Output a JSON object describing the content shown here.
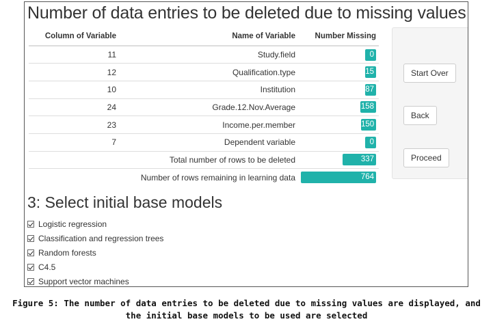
{
  "missing_section": {
    "title": "Number of data entries to be deleted due to missing values",
    "headers": [
      "Column of Variable",
      "Name of Variable",
      "Number Missing"
    ],
    "rows": [
      {
        "column": "11",
        "name": "Study.field",
        "missing": 0
      },
      {
        "column": "12",
        "name": "Qualification.type",
        "missing": 15
      },
      {
        "column": "10",
        "name": "Institution",
        "missing": 87
      },
      {
        "column": "24",
        "name": "Grade.12.Nov.Average",
        "missing": 158
      },
      {
        "column": "23",
        "name": "Income.per.member",
        "missing": 150
      },
      {
        "column": "7",
        "name": "Dependent variable",
        "missing": 0
      }
    ],
    "total": {
      "label": "Total number of rows to be deleted",
      "value": 337
    },
    "remaining": {
      "label": "Number of rows remaining in learning data",
      "value": 764
    },
    "bar_max": 764,
    "bar_color": "#20b2aa"
  },
  "buttons": {
    "start_over": "Start Over",
    "back": "Back",
    "proceed": "Proceed"
  },
  "models_section": {
    "title": "3: Select initial base models",
    "options": [
      {
        "label": "Logistic regression",
        "checked": true
      },
      {
        "label": "Classification and regression trees",
        "checked": true
      },
      {
        "label": "Random forests",
        "checked": true
      },
      {
        "label": "C4.5",
        "checked": true
      },
      {
        "label": "Support vector machines",
        "checked": true
      }
    ]
  },
  "caption": {
    "line1": "Figure 5: The number of data entries to be deleted due to missing values are displayed, and",
    "line2": "the initial base models to be used are selected"
  }
}
